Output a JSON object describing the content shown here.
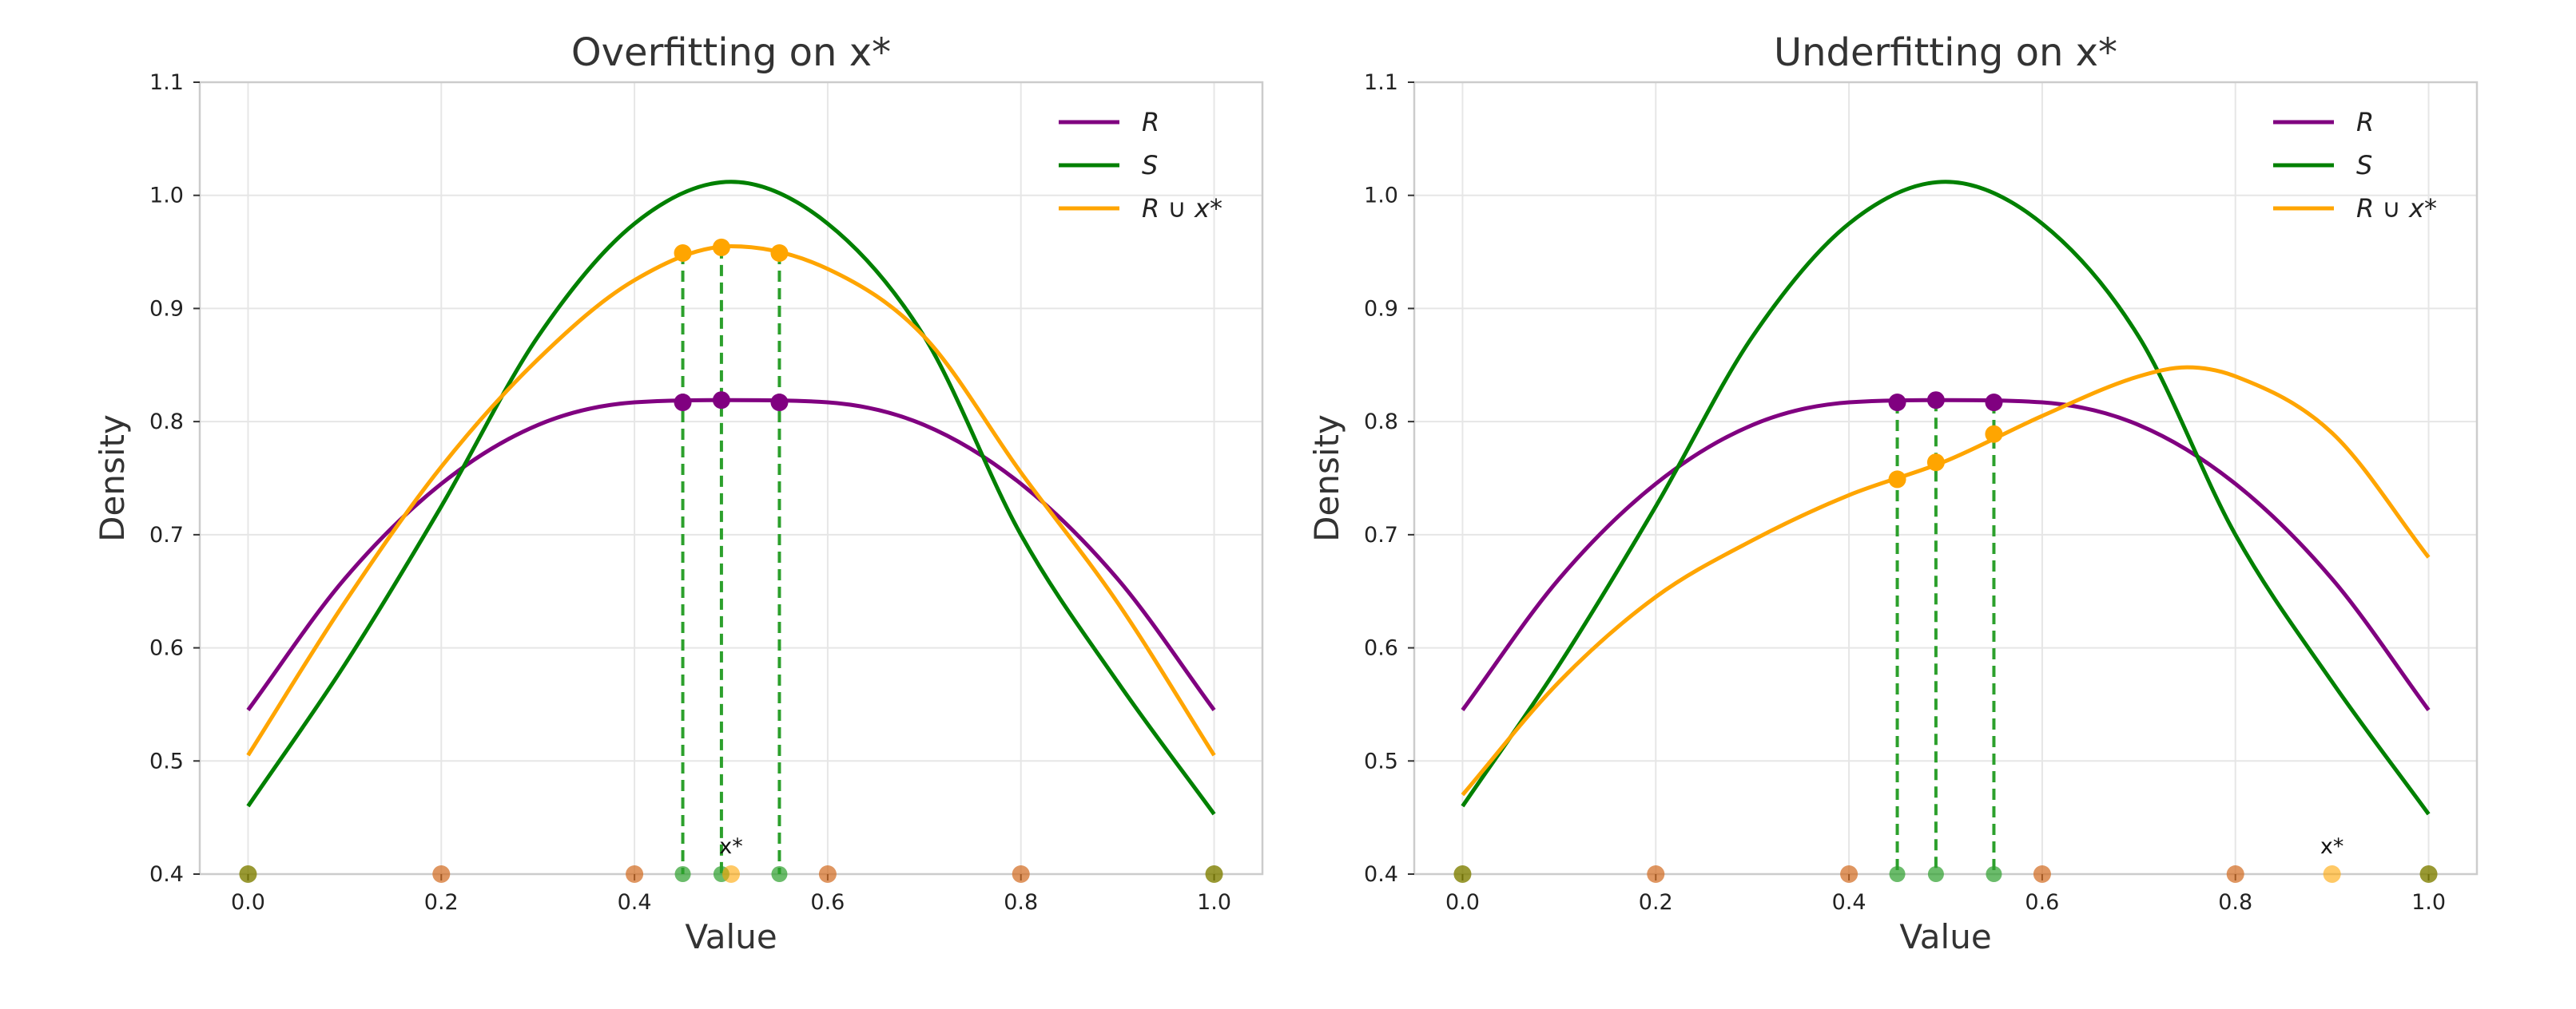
{
  "colors": {
    "R": "#800080",
    "S": "#008000",
    "RU": "#FFA500",
    "sample_dot": "#D2691E",
    "endpoint_dot": "#808000",
    "guide": "#2ca02c"
  },
  "chart_data": [
    {
      "type": "line",
      "title": "Overfitting on x*",
      "xlabel": "Value",
      "ylabel": "Density",
      "xlim": [
        -0.05,
        1.05
      ],
      "ylim": [
        0.4,
        1.1
      ],
      "xticks": [
        0.0,
        0.2,
        0.4,
        0.6,
        0.8,
        1.0
      ],
      "xtick_labels": [
        "0.0",
        "0.2",
        "0.4",
        "0.6",
        "0.8",
        "1.0"
      ],
      "yticks": [
        0.4,
        0.5,
        0.6,
        0.7,
        0.8,
        0.9,
        1.0,
        1.1
      ],
      "ytick_labels": [
        "0.4",
        "0.5",
        "0.6",
        "0.7",
        "0.8",
        "0.9",
        "1.0",
        "1.1"
      ],
      "grid": true,
      "legend": {
        "position": "top-right",
        "entries": [
          "R",
          "S",
          "R ∪ x*"
        ]
      },
      "series": [
        {
          "name": "R",
          "color_key": "R",
          "x": [
            0.0,
            0.1,
            0.2,
            0.3,
            0.4,
            0.5,
            0.6,
            0.7,
            0.8,
            0.9,
            1.0
          ],
          "y": [
            0.545,
            0.661,
            0.745,
            0.797,
            0.817,
            0.819,
            0.817,
            0.797,
            0.745,
            0.661,
            0.545
          ]
        },
        {
          "name": "S",
          "color_key": "S",
          "x": [
            0.0,
            0.1,
            0.2,
            0.3,
            0.4,
            0.5,
            0.6,
            0.7,
            0.8,
            0.9,
            1.0
          ],
          "y": [
            0.46,
            0.585,
            0.725,
            0.875,
            0.975,
            1.012,
            0.975,
            0.875,
            0.7,
            0.57,
            0.453
          ]
        },
        {
          "name": "R ∪ x*",
          "color_key": "RU",
          "x": [
            0.0,
            0.1,
            0.2,
            0.3,
            0.4,
            0.5,
            0.6,
            0.7,
            0.8,
            0.9,
            1.0
          ],
          "y": [
            0.505,
            0.64,
            0.76,
            0.855,
            0.925,
            0.955,
            0.935,
            0.875,
            0.755,
            0.64,
            0.505
          ]
        }
      ],
      "guides": [
        {
          "x": 0.45,
          "y_R": 0.817,
          "y_RU": 0.949
        },
        {
          "x": 0.49,
          "y_R": 0.819,
          "y_RU": 0.954
        },
        {
          "x": 0.55,
          "y_R": 0.817,
          "y_RU": 0.949
        }
      ],
      "sample_points": [
        0.2,
        0.4,
        0.6,
        0.8
      ],
      "endpoint_points": [
        0.0,
        1.0
      ],
      "xstar": {
        "x": 0.5,
        "label": "x*"
      }
    },
    {
      "type": "line",
      "title": "Underfitting on x*",
      "xlabel": "Value",
      "ylabel": "Density",
      "xlim": [
        -0.05,
        1.05
      ],
      "ylim": [
        0.4,
        1.1
      ],
      "xticks": [
        0.0,
        0.2,
        0.4,
        0.6,
        0.8,
        1.0
      ],
      "xtick_labels": [
        "0.0",
        "0.2",
        "0.4",
        "0.6",
        "0.8",
        "1.0"
      ],
      "yticks": [
        0.4,
        0.5,
        0.6,
        0.7,
        0.8,
        0.9,
        1.0,
        1.1
      ],
      "ytick_labels": [
        "0.4",
        "0.5",
        "0.6",
        "0.7",
        "0.8",
        "0.9",
        "1.0",
        "1.1"
      ],
      "grid": true,
      "legend": {
        "position": "top-right",
        "entries": [
          "R",
          "S",
          "R ∪ x*"
        ]
      },
      "series": [
        {
          "name": "R",
          "color_key": "R",
          "x": [
            0.0,
            0.1,
            0.2,
            0.3,
            0.4,
            0.5,
            0.6,
            0.7,
            0.8,
            0.9,
            1.0
          ],
          "y": [
            0.545,
            0.661,
            0.745,
            0.797,
            0.817,
            0.819,
            0.817,
            0.797,
            0.745,
            0.661,
            0.545
          ]
        },
        {
          "name": "S",
          "color_key": "S",
          "x": [
            0.0,
            0.1,
            0.2,
            0.3,
            0.4,
            0.5,
            0.6,
            0.7,
            0.8,
            0.9,
            1.0
          ],
          "y": [
            0.46,
            0.585,
            0.725,
            0.875,
            0.975,
            1.012,
            0.975,
            0.875,
            0.7,
            0.57,
            0.453
          ]
        },
        {
          "name": "R ∪ x*",
          "color_key": "RU",
          "x": [
            0.0,
            0.1,
            0.2,
            0.3,
            0.4,
            0.5,
            0.6,
            0.7,
            0.75,
            0.8,
            0.9,
            1.0
          ],
          "y": [
            0.47,
            0.57,
            0.645,
            0.695,
            0.735,
            0.765,
            0.805,
            0.84,
            0.848,
            0.84,
            0.79,
            0.68
          ]
        }
      ],
      "guides": [
        {
          "x": 0.45,
          "y_R": 0.817,
          "y_RU": 0.749
        },
        {
          "x": 0.49,
          "y_R": 0.819,
          "y_RU": 0.764
        },
        {
          "x": 0.55,
          "y_R": 0.817,
          "y_RU": 0.789
        }
      ],
      "sample_points": [
        0.2,
        0.4,
        0.6,
        0.8
      ],
      "endpoint_points": [
        0.0,
        1.0
      ],
      "xstar": {
        "x": 0.9,
        "label": "x*"
      }
    }
  ]
}
